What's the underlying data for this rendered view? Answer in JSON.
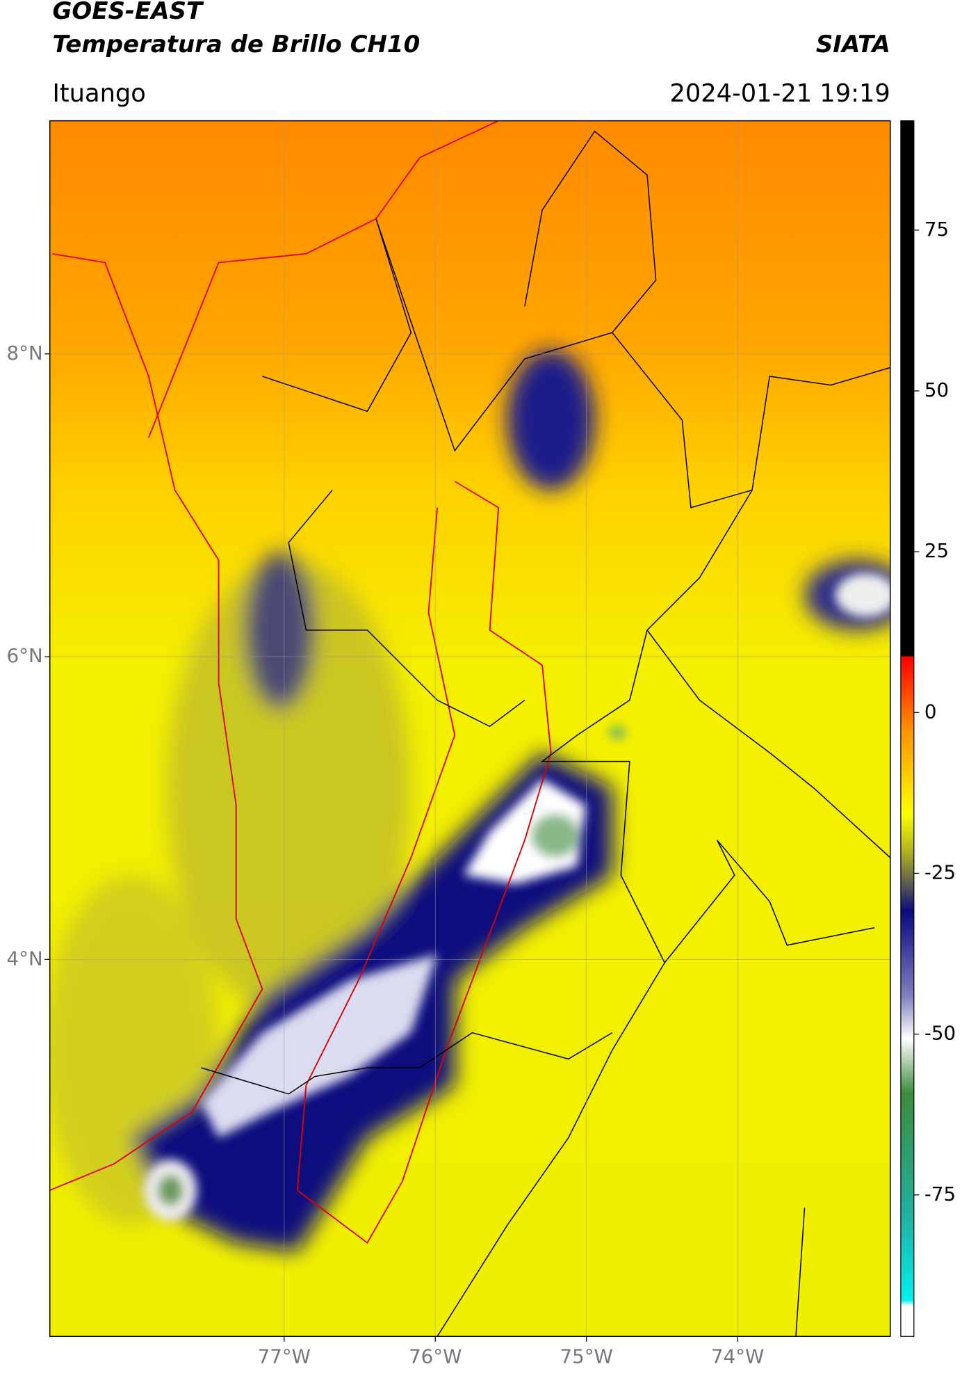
{
  "header": {
    "title": "GOES-EAST",
    "subtitle": "Temperatura de Brillo CH10",
    "source": "SIATA",
    "location": "Ituango",
    "datetime": "2024-01-21 19:19"
  },
  "map": {
    "xlim": [
      -78.55,
      -72.99
    ],
    "ylim": [
      1.51,
      9.54
    ],
    "xticks": [
      {
        "value": -77,
        "label": "77°W"
      },
      {
        "value": -76,
        "label": "76°W"
      },
      {
        "value": -75,
        "label": "75°W"
      },
      {
        "value": -74,
        "label": "74°W"
      }
    ],
    "yticks": [
      {
        "value": 4,
        "label": "4°N"
      },
      {
        "value": 6,
        "label": "6°N"
      },
      {
        "value": 8,
        "label": "8°N"
      }
    ],
    "grid": true
  },
  "colorbar": {
    "lim": [
      -97,
      92
    ],
    "ticks": [
      -75,
      -50,
      -25,
      0,
      25,
      50,
      75
    ]
  }
}
